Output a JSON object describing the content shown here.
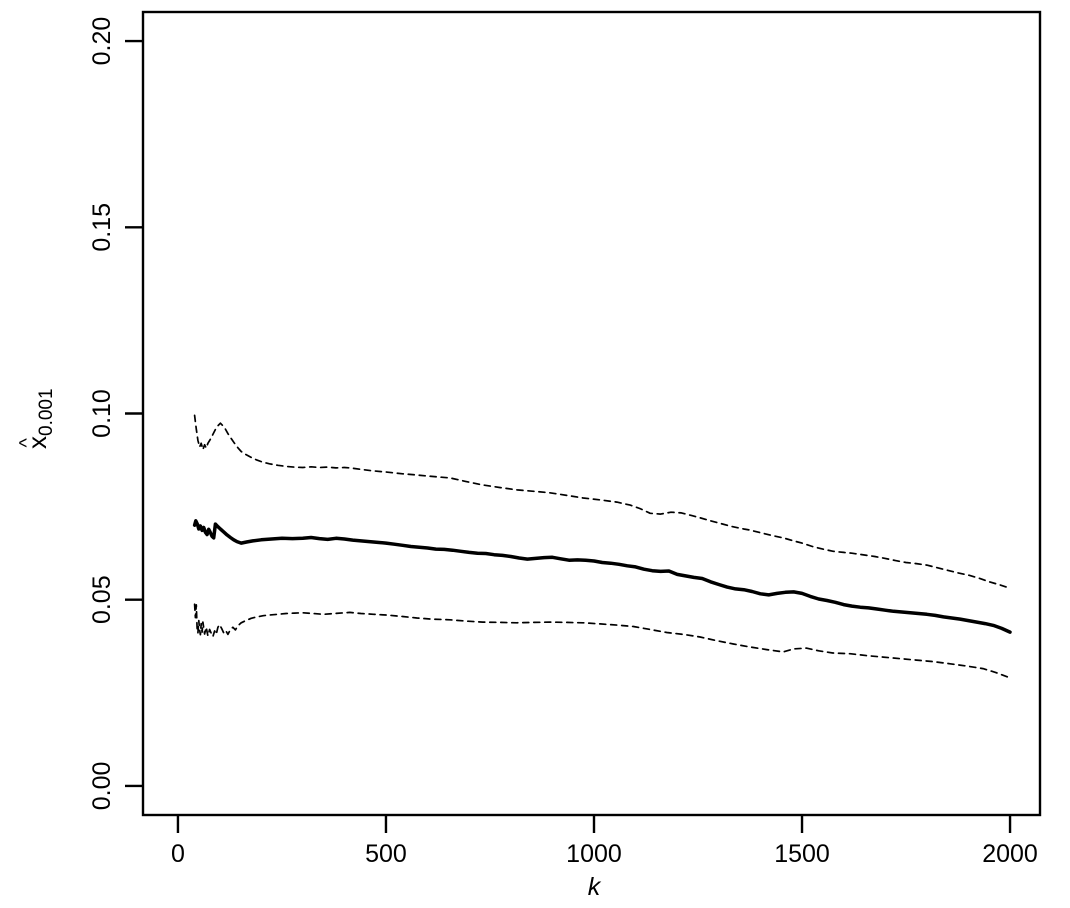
{
  "figure": {
    "background_color": "#ffffff",
    "ink_color": "#000000"
  },
  "chart_data": {
    "type": "line",
    "title": "",
    "xlabel": "k",
    "ylabel": {
      "hat_symbol": "^",
      "variable": "x",
      "subscript": "0.001"
    },
    "xlim": [
      -84,
      2072
    ],
    "ylim": [
      -0.0078,
      0.2078
    ],
    "grid": false,
    "legend": "none",
    "x_ticks": [
      {
        "value": 0,
        "label": "0"
      },
      {
        "value": 500,
        "label": "500"
      },
      {
        "value": 1000,
        "label": "1000"
      },
      {
        "value": 1500,
        "label": "1500"
      },
      {
        "value": 2000,
        "label": "2000"
      }
    ],
    "y_ticks": [
      {
        "value": 0.0,
        "label": "0.00"
      },
      {
        "value": 0.05,
        "label": "0.05"
      },
      {
        "value": 0.1,
        "label": "0.10"
      },
      {
        "value": 0.15,
        "label": "0.15"
      },
      {
        "value": 0.2,
        "label": "0.20"
      }
    ],
    "series": [
      {
        "name": "upper-confidence-band",
        "style": "dashed",
        "color": "#000000",
        "points": [
          [
            40,
            0.0995
          ],
          [
            44,
            0.0958
          ],
          [
            48,
            0.0928
          ],
          [
            52,
            0.091
          ],
          [
            56,
            0.092
          ],
          [
            60,
            0.0903
          ],
          [
            64,
            0.0916
          ],
          [
            68,
            0.0907
          ],
          [
            72,
            0.092
          ],
          [
            78,
            0.0931
          ],
          [
            84,
            0.0944
          ],
          [
            90,
            0.0957
          ],
          [
            96,
            0.0967
          ],
          [
            102,
            0.0974
          ],
          [
            108,
            0.0967
          ],
          [
            114,
            0.0958
          ],
          [
            120,
            0.0946
          ],
          [
            128,
            0.0933
          ],
          [
            136,
            0.092
          ],
          [
            144,
            0.0908
          ],
          [
            152,
            0.0898
          ],
          [
            163,
            0.089
          ],
          [
            176,
            0.0882
          ],
          [
            190,
            0.0875
          ],
          [
            205,
            0.0869
          ],
          [
            220,
            0.0865
          ],
          [
            240,
            0.0861
          ],
          [
            260,
            0.0858
          ],
          [
            280,
            0.0856
          ],
          [
            300,
            0.0855
          ],
          [
            320,
            0.0857
          ],
          [
            340,
            0.0855
          ],
          [
            360,
            0.0856
          ],
          [
            380,
            0.0854
          ],
          [
            400,
            0.0855
          ],
          [
            413,
            0.0854
          ],
          [
            440,
            0.085
          ],
          [
            470,
            0.0846
          ],
          [
            500,
            0.0843
          ],
          [
            540,
            0.0838
          ],
          [
            574,
            0.0835
          ],
          [
            610,
            0.0831
          ],
          [
            654,
            0.0827
          ],
          [
            690,
            0.0818
          ],
          [
            733,
            0.0808
          ],
          [
            775,
            0.0801
          ],
          [
            815,
            0.0795
          ],
          [
            855,
            0.0791
          ],
          [
            894,
            0.0787
          ],
          [
            935,
            0.078
          ],
          [
            974,
            0.0773
          ],
          [
            1015,
            0.0768
          ],
          [
            1055,
            0.0762
          ],
          [
            1087,
            0.0754
          ],
          [
            1110,
            0.0745
          ],
          [
            1135,
            0.0732
          ],
          [
            1160,
            0.073
          ],
          [
            1185,
            0.0735
          ],
          [
            1210,
            0.0733
          ],
          [
            1235,
            0.0726
          ],
          [
            1255,
            0.072
          ],
          [
            1280,
            0.0712
          ],
          [
            1300,
            0.0706
          ],
          [
            1330,
            0.0697
          ],
          [
            1360,
            0.069
          ],
          [
            1375,
            0.0687
          ],
          [
            1400,
            0.068
          ],
          [
            1430,
            0.0672
          ],
          [
            1455,
            0.0666
          ],
          [
            1480,
            0.0658
          ],
          [
            1500,
            0.0652
          ],
          [
            1525,
            0.0643
          ],
          [
            1550,
            0.0636
          ],
          [
            1575,
            0.063
          ],
          [
            1600,
            0.0627
          ],
          [
            1620,
            0.0625
          ],
          [
            1650,
            0.062
          ],
          [
            1675,
            0.0616
          ],
          [
            1700,
            0.0611
          ],
          [
            1725,
            0.0605
          ],
          [
            1750,
            0.06
          ],
          [
            1775,
            0.0597
          ],
          [
            1800,
            0.0593
          ],
          [
            1825,
            0.0586
          ],
          [
            1850,
            0.0579
          ],
          [
            1875,
            0.0572
          ],
          [
            1900,
            0.0566
          ],
          [
            1925,
            0.0558
          ],
          [
            1950,
            0.0548
          ],
          [
            1975,
            0.054
          ],
          [
            2000,
            0.0531
          ]
        ]
      },
      {
        "name": "quantile-estimate",
        "style": "solid",
        "color": "#000000",
        "points": [
          [
            40,
            0.07
          ],
          [
            43,
            0.0712
          ],
          [
            47,
            0.0702
          ],
          [
            50,
            0.069
          ],
          [
            54,
            0.0698
          ],
          [
            58,
            0.0686
          ],
          [
            62,
            0.0694
          ],
          [
            66,
            0.0681
          ],
          [
            70,
            0.0675
          ],
          [
            74,
            0.0689
          ],
          [
            78,
            0.068
          ],
          [
            82,
            0.067
          ],
          [
            86,
            0.0666
          ],
          [
            90,
            0.0703
          ],
          [
            96,
            0.0696
          ],
          [
            102,
            0.069
          ],
          [
            110,
            0.0682
          ],
          [
            118,
            0.0674
          ],
          [
            126,
            0.0667
          ],
          [
            134,
            0.0661
          ],
          [
            142,
            0.0656
          ],
          [
            152,
            0.0652
          ],
          [
            165,
            0.0655
          ],
          [
            180,
            0.0658
          ],
          [
            200,
            0.0661
          ],
          [
            225,
            0.0663
          ],
          [
            250,
            0.0665
          ],
          [
            275,
            0.0664
          ],
          [
            300,
            0.0665
          ],
          [
            320,
            0.0667
          ],
          [
            340,
            0.0664
          ],
          [
            360,
            0.0662
          ],
          [
            380,
            0.0665
          ],
          [
            400,
            0.0663
          ],
          [
            420,
            0.066
          ],
          [
            440,
            0.0658
          ],
          [
            460,
            0.0656
          ],
          [
            480,
            0.0654
          ],
          [
            500,
            0.0652
          ],
          [
            520,
            0.0649
          ],
          [
            540,
            0.0646
          ],
          [
            560,
            0.0643
          ],
          [
            580,
            0.0641
          ],
          [
            600,
            0.0639
          ],
          [
            620,
            0.0636
          ],
          [
            640,
            0.0635
          ],
          [
            660,
            0.0633
          ],
          [
            680,
            0.063
          ],
          [
            700,
            0.0627
          ],
          [
            720,
            0.0625
          ],
          [
            740,
            0.0624
          ],
          [
            760,
            0.0621
          ],
          [
            780,
            0.0619
          ],
          [
            800,
            0.0616
          ],
          [
            820,
            0.0612
          ],
          [
            840,
            0.0609
          ],
          [
            860,
            0.0611
          ],
          [
            880,
            0.0613
          ],
          [
            900,
            0.0614
          ],
          [
            920,
            0.061
          ],
          [
            940,
            0.0606
          ],
          [
            960,
            0.0607
          ],
          [
            980,
            0.0606
          ],
          [
            1000,
            0.0604
          ],
          [
            1020,
            0.06
          ],
          [
            1040,
            0.0598
          ],
          [
            1060,
            0.0595
          ],
          [
            1080,
            0.0591
          ],
          [
            1100,
            0.0588
          ],
          [
            1120,
            0.0582
          ],
          [
            1140,
            0.0578
          ],
          [
            1160,
            0.0576
          ],
          [
            1180,
            0.0577
          ],
          [
            1200,
            0.0568
          ],
          [
            1220,
            0.0564
          ],
          [
            1240,
            0.056
          ],
          [
            1260,
            0.0557
          ],
          [
            1280,
            0.0548
          ],
          [
            1300,
            0.0541
          ],
          [
            1320,
            0.0534
          ],
          [
            1340,
            0.0529
          ],
          [
            1360,
            0.0527
          ],
          [
            1380,
            0.0522
          ],
          [
            1400,
            0.0516
          ],
          [
            1420,
            0.0513
          ],
          [
            1440,
            0.0517
          ],
          [
            1460,
            0.052
          ],
          [
            1480,
            0.0521
          ],
          [
            1500,
            0.0517
          ],
          [
            1520,
            0.0509
          ],
          [
            1540,
            0.0502
          ],
          [
            1560,
            0.0498
          ],
          [
            1580,
            0.0493
          ],
          [
            1600,
            0.0487
          ],
          [
            1620,
            0.0483
          ],
          [
            1640,
            0.048
          ],
          [
            1660,
            0.0478
          ],
          [
            1680,
            0.0475
          ],
          [
            1700,
            0.0472
          ],
          [
            1720,
            0.0469
          ],
          [
            1740,
            0.0467
          ],
          [
            1760,
            0.0465
          ],
          [
            1780,
            0.0463
          ],
          [
            1800,
            0.0461
          ],
          [
            1820,
            0.0458
          ],
          [
            1840,
            0.0454
          ],
          [
            1860,
            0.0451
          ],
          [
            1880,
            0.0448
          ],
          [
            1900,
            0.0444
          ],
          [
            1920,
            0.044
          ],
          [
            1940,
            0.0436
          ],
          [
            1960,
            0.0431
          ],
          [
            1980,
            0.0423
          ],
          [
            2000,
            0.0413
          ]
        ]
      },
      {
        "name": "lower-confidence-band",
        "style": "dashed",
        "color": "#000000",
        "points": [
          [
            40,
            0.0488
          ],
          [
            42,
            0.0452
          ],
          [
            44,
            0.0486
          ],
          [
            46,
            0.0424
          ],
          [
            48,
            0.041
          ],
          [
            50,
            0.0444
          ],
          [
            52,
            0.0419
          ],
          [
            54,
            0.0406
          ],
          [
            56,
            0.0436
          ],
          [
            58,
            0.0413
          ],
          [
            60,
            0.044
          ],
          [
            64,
            0.0408
          ],
          [
            68,
            0.0426
          ],
          [
            72,
            0.0403
          ],
          [
            76,
            0.042
          ],
          [
            80,
            0.041
          ],
          [
            84,
            0.0401
          ],
          [
            88,
            0.0416
          ],
          [
            92,
            0.0407
          ],
          [
            96,
            0.0426
          ],
          [
            100,
            0.0433
          ],
          [
            105,
            0.0423
          ],
          [
            110,
            0.0411
          ],
          [
            115,
            0.0417
          ],
          [
            120,
            0.0407
          ],
          [
            126,
            0.042
          ],
          [
            132,
            0.0426
          ],
          [
            138,
            0.0419
          ],
          [
            144,
            0.043
          ],
          [
            152,
            0.0438
          ],
          [
            163,
            0.0444
          ],
          [
            176,
            0.045
          ],
          [
            190,
            0.0454
          ],
          [
            205,
            0.0457
          ],
          [
            220,
            0.0459
          ],
          [
            240,
            0.0461
          ],
          [
            260,
            0.0463
          ],
          [
            280,
            0.0464
          ],
          [
            300,
            0.0465
          ],
          [
            325,
            0.0463
          ],
          [
            350,
            0.0461
          ],
          [
            375,
            0.0463
          ],
          [
            400,
            0.0465
          ],
          [
            413,
            0.0466
          ],
          [
            440,
            0.0463
          ],
          [
            470,
            0.0461
          ],
          [
            500,
            0.0459
          ],
          [
            540,
            0.0455
          ],
          [
            574,
            0.0451
          ],
          [
            610,
            0.0448
          ],
          [
            654,
            0.0446
          ],
          [
            690,
            0.0443
          ],
          [
            733,
            0.044
          ],
          [
            775,
            0.0439
          ],
          [
            815,
            0.0438
          ],
          [
            855,
            0.0439
          ],
          [
            894,
            0.044
          ],
          [
            935,
            0.0439
          ],
          [
            974,
            0.0438
          ],
          [
            1015,
            0.0435
          ],
          [
            1055,
            0.0432
          ],
          [
            1095,
            0.0428
          ],
          [
            1135,
            0.042
          ],
          [
            1175,
            0.0412
          ],
          [
            1215,
            0.0407
          ],
          [
            1255,
            0.04
          ],
          [
            1295,
            0.039
          ],
          [
            1335,
            0.0381
          ],
          [
            1375,
            0.0373
          ],
          [
            1415,
            0.0366
          ],
          [
            1455,
            0.036
          ],
          [
            1480,
            0.0368
          ],
          [
            1510,
            0.037
          ],
          [
            1540,
            0.0363
          ],
          [
            1574,
            0.0357
          ],
          [
            1615,
            0.0355
          ],
          [
            1655,
            0.035
          ],
          [
            1695,
            0.0346
          ],
          [
            1735,
            0.0342
          ],
          [
            1775,
            0.0338
          ],
          [
            1815,
            0.0334
          ],
          [
            1856,
            0.0328
          ],
          [
            1895,
            0.0322
          ],
          [
            1935,
            0.0315
          ],
          [
            1965,
            0.0305
          ],
          [
            2000,
            0.029
          ]
        ]
      }
    ]
  }
}
